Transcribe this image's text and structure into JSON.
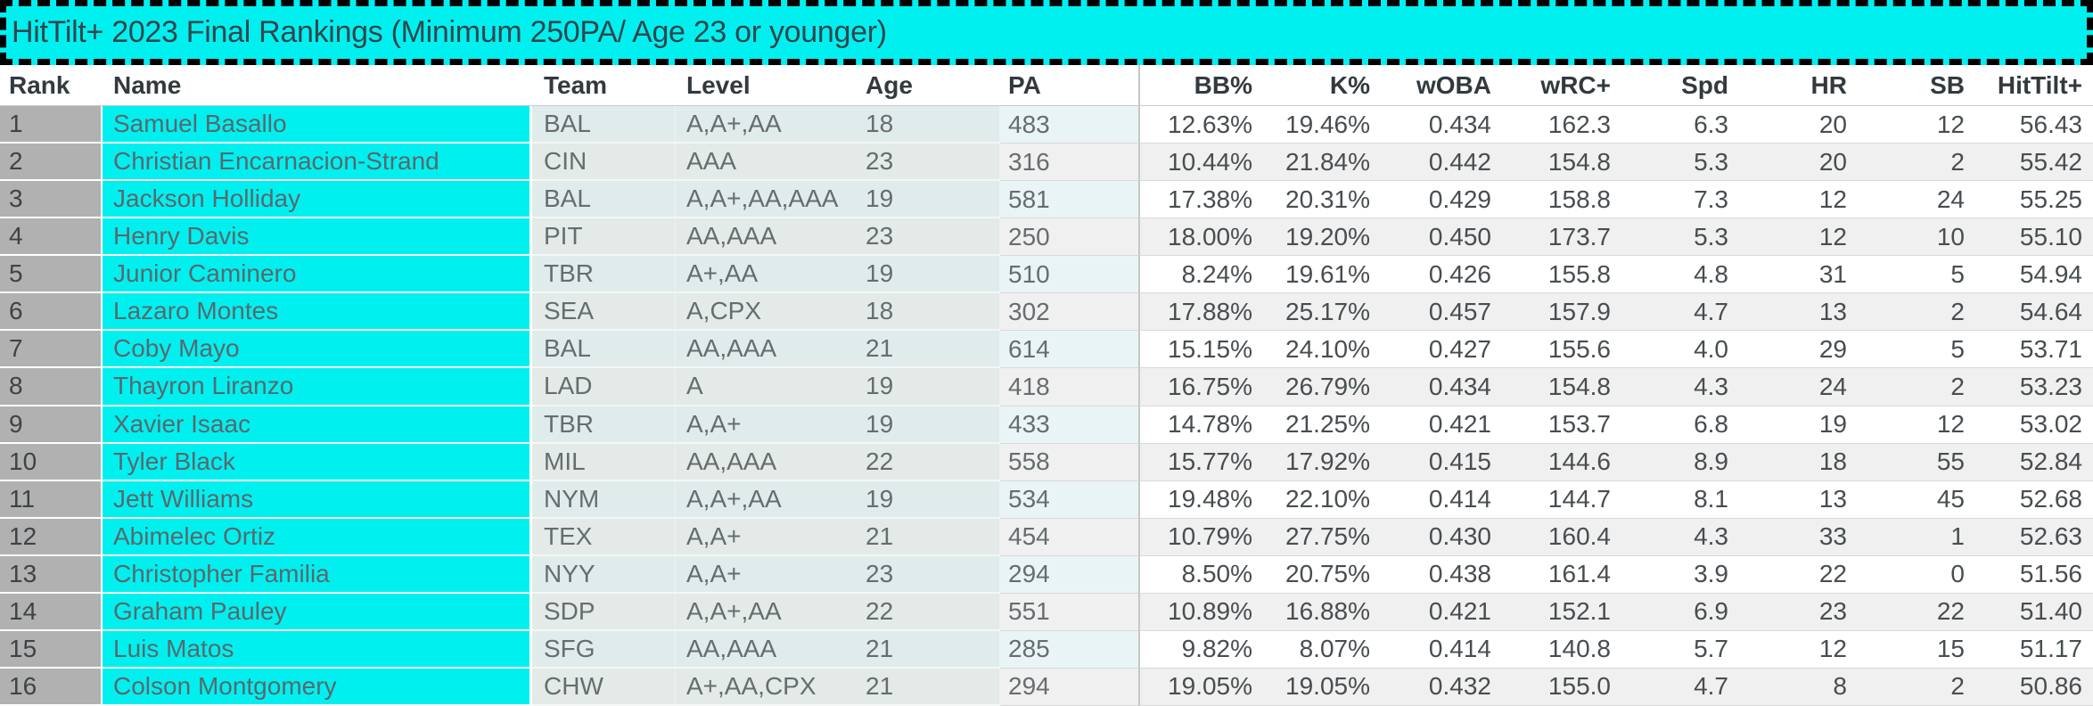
{
  "title": "HitTilt+ 2023 Final Rankings (Minimum 250PA/ Age 23 or younger)",
  "colors": {
    "accent_cyan": "#00f0f0",
    "rank_column_gray": "#b1b1b1",
    "team_level_age_bg": "#e1ecea",
    "pa_highlight": "#e9f4f6",
    "stripe_gray": "#f0f0f0",
    "border_black_dashed": "#000000"
  },
  "chart_data": {
    "type": "table",
    "title": "HitTilt+ 2023 Final Rankings (Minimum 250PA/ Age 23 or younger)",
    "columns": [
      "Rank",
      "Name",
      "Team",
      "Level",
      "Age",
      "PA",
      "BB%",
      "K%",
      "wOBA",
      "wRC+",
      "Spd",
      "HR",
      "SB",
      "HitTilt+"
    ],
    "rows": [
      {
        "rank": "1",
        "name": "Samuel Basallo",
        "team": "BAL",
        "level": "A,A+,AA",
        "age": "18",
        "pa": "483",
        "bb": "12.63%",
        "k": "19.46%",
        "woba": "0.434",
        "wrc": "162.3",
        "spd": "6.3",
        "hr": "20",
        "sb": "12",
        "hittilt": "56.43"
      },
      {
        "rank": "2",
        "name": "Christian Encarnacion-Strand",
        "team": "CIN",
        "level": "AAA",
        "age": "23",
        "pa": "316",
        "bb": "10.44%",
        "k": "21.84%",
        "woba": "0.442",
        "wrc": "154.8",
        "spd": "5.3",
        "hr": "20",
        "sb": "2",
        "hittilt": "55.42"
      },
      {
        "rank": "3",
        "name": "Jackson Holliday",
        "team": "BAL",
        "level": "A,A+,AA,AAA",
        "age": "19",
        "pa": "581",
        "bb": "17.38%",
        "k": "20.31%",
        "woba": "0.429",
        "wrc": "158.8",
        "spd": "7.3",
        "hr": "12",
        "sb": "24",
        "hittilt": "55.25"
      },
      {
        "rank": "4",
        "name": "Henry Davis",
        "team": "PIT",
        "level": "AA,AAA",
        "age": "23",
        "pa": "250",
        "bb": "18.00%",
        "k": "19.20%",
        "woba": "0.450",
        "wrc": "173.7",
        "spd": "5.3",
        "hr": "12",
        "sb": "10",
        "hittilt": "55.10"
      },
      {
        "rank": "5",
        "name": "Junior Caminero",
        "team": "TBR",
        "level": "A+,AA",
        "age": "19",
        "pa": "510",
        "bb": "8.24%",
        "k": "19.61%",
        "woba": "0.426",
        "wrc": "155.8",
        "spd": "4.8",
        "hr": "31",
        "sb": "5",
        "hittilt": "54.94"
      },
      {
        "rank": "6",
        "name": "Lazaro Montes",
        "team": "SEA",
        "level": "A,CPX",
        "age": "18",
        "pa": "302",
        "bb": "17.88%",
        "k": "25.17%",
        "woba": "0.457",
        "wrc": "157.9",
        "spd": "4.7",
        "hr": "13",
        "sb": "2",
        "hittilt": "54.64"
      },
      {
        "rank": "7",
        "name": "Coby Mayo",
        "team": "BAL",
        "level": "AA,AAA",
        "age": "21",
        "pa": "614",
        "bb": "15.15%",
        "k": "24.10%",
        "woba": "0.427",
        "wrc": "155.6",
        "spd": "4.0",
        "hr": "29",
        "sb": "5",
        "hittilt": "53.71"
      },
      {
        "rank": "8",
        "name": "Thayron Liranzo",
        "team": "LAD",
        "level": "A",
        "age": "19",
        "pa": "418",
        "bb": "16.75%",
        "k": "26.79%",
        "woba": "0.434",
        "wrc": "154.8",
        "spd": "4.3",
        "hr": "24",
        "sb": "2",
        "hittilt": "53.23"
      },
      {
        "rank": "9",
        "name": "Xavier Isaac",
        "team": "TBR",
        "level": "A,A+",
        "age": "19",
        "pa": "433",
        "bb": "14.78%",
        "k": "21.25%",
        "woba": "0.421",
        "wrc": "153.7",
        "spd": "6.8",
        "hr": "19",
        "sb": "12",
        "hittilt": "53.02"
      },
      {
        "rank": "10",
        "name": "Tyler Black",
        "team": "MIL",
        "level": "AA,AAA",
        "age": "22",
        "pa": "558",
        "bb": "15.77%",
        "k": "17.92%",
        "woba": "0.415",
        "wrc": "144.6",
        "spd": "8.9",
        "hr": "18",
        "sb": "55",
        "hittilt": "52.84"
      },
      {
        "rank": "11",
        "name": "Jett Williams",
        "team": "NYM",
        "level": "A,A+,AA",
        "age": "19",
        "pa": "534",
        "bb": "19.48%",
        "k": "22.10%",
        "woba": "0.414",
        "wrc": "144.7",
        "spd": "8.1",
        "hr": "13",
        "sb": "45",
        "hittilt": "52.68"
      },
      {
        "rank": "12",
        "name": "Abimelec Ortiz",
        "team": "TEX",
        "level": "A,A+",
        "age": "21",
        "pa": "454",
        "bb": "10.79%",
        "k": "27.75%",
        "woba": "0.430",
        "wrc": "160.4",
        "spd": "4.3",
        "hr": "33",
        "sb": "1",
        "hittilt": "52.63"
      },
      {
        "rank": "13",
        "name": "Christopher Familia",
        "team": "NYY",
        "level": "A,A+",
        "age": "23",
        "pa": "294",
        "bb": "8.50%",
        "k": "20.75%",
        "woba": "0.438",
        "wrc": "161.4",
        "spd": "3.9",
        "hr": "22",
        "sb": "0",
        "hittilt": "51.56"
      },
      {
        "rank": "14",
        "name": "Graham Pauley",
        "team": "SDP",
        "level": "A,A+,AA",
        "age": "22",
        "pa": "551",
        "bb": "10.89%",
        "k": "16.88%",
        "woba": "0.421",
        "wrc": "152.1",
        "spd": "6.9",
        "hr": "23",
        "sb": "22",
        "hittilt": "51.40"
      },
      {
        "rank": "15",
        "name": "Luis Matos",
        "team": "SFG",
        "level": "AA,AAA",
        "age": "21",
        "pa": "285",
        "bb": "9.82%",
        "k": "8.07%",
        "woba": "0.414",
        "wrc": "140.8",
        "spd": "5.7",
        "hr": "12",
        "sb": "15",
        "hittilt": "51.17"
      },
      {
        "rank": "16",
        "name": "Colson Montgomery",
        "team": "CHW",
        "level": "A+,AA,CPX",
        "age": "21",
        "pa": "294",
        "bb": "19.05%",
        "k": "19.05%",
        "woba": "0.432",
        "wrc": "155.0",
        "spd": "4.7",
        "hr": "8",
        "sb": "2",
        "hittilt": "50.86"
      }
    ]
  }
}
